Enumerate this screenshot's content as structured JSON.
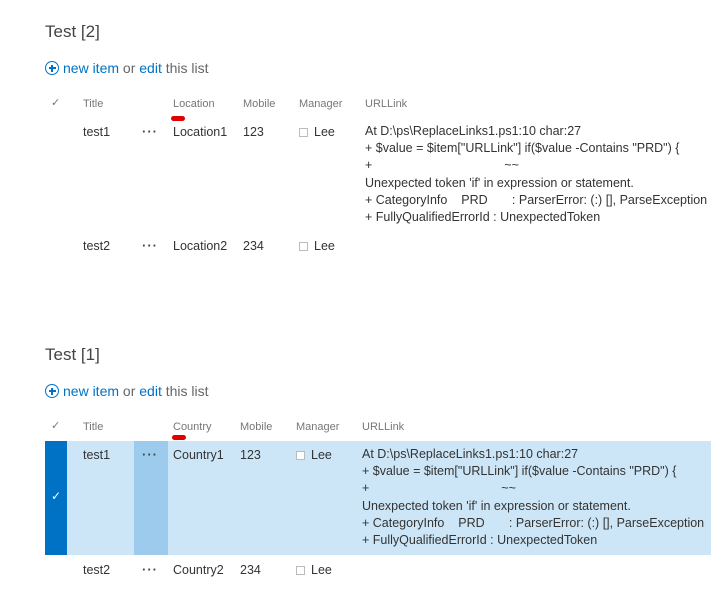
{
  "lists": [
    {
      "title": "Test [2]",
      "command": {
        "new_item": "new item",
        "or": "or",
        "edit": "edit",
        "this_list": "this list"
      },
      "check_header": "✓",
      "headers": {
        "title": "Title",
        "col2": "Location",
        "mobile": "Mobile",
        "manager": "Manager",
        "urllink": "URLLink"
      },
      "rows": [
        {
          "title": "test1",
          "menu": "···",
          "col2": "Location1",
          "mobile": "123",
          "manager": "Lee",
          "urllink": "At D:\\ps\\ReplaceLinks1.ps1:10 char:27\n+ $value = $item[\"URLLink\"] if($value -Contains \"PRD\") {\n+                                      ~~\nUnexpected token 'if' in expression or statement.\n+ CategoryInfo    PRD       : ParserError: (:) [], ParseException\n+ FullyQualifiedErrorId : UnexpectedToken"
        },
        {
          "title": "test2",
          "menu": "···",
          "col2": "Location2",
          "mobile": "234",
          "manager": "Lee",
          "urllink": ""
        }
      ]
    },
    {
      "title": "Test [1]",
      "command": {
        "new_item": "new item",
        "or": "or",
        "edit": "edit",
        "this_list": "this list"
      },
      "check_header": "✓",
      "headers": {
        "title": "Title",
        "col2": "Country",
        "mobile": "Mobile",
        "manager": "Manager",
        "urllink": "URLLink"
      },
      "rows": [
        {
          "title": "test1",
          "menu": "···",
          "col2": "Country1",
          "mobile": "123",
          "manager": "Lee",
          "selected": true,
          "selected_check": "✓",
          "urllink": "At D:\\ps\\ReplaceLinks1.ps1:10 char:27\n+ $value = $item[\"URLLink\"] if($value -Contains \"PRD\") {\n+                                      ~~\nUnexpected token 'if' in expression or statement.\n+ CategoryInfo    PRD       : ParserError: (:) [], ParseException\n+ FullyQualifiedErrorId : UnexpectedToken"
        },
        {
          "title": "test2",
          "menu": "···",
          "col2": "Country2",
          "mobile": "234",
          "manager": "Lee",
          "urllink": ""
        }
      ]
    }
  ],
  "colors": {
    "accent": "#0072c6",
    "selected_row": "#cde6f7",
    "selected_menu": "#9dcbee",
    "annotation": "#e00000"
  }
}
